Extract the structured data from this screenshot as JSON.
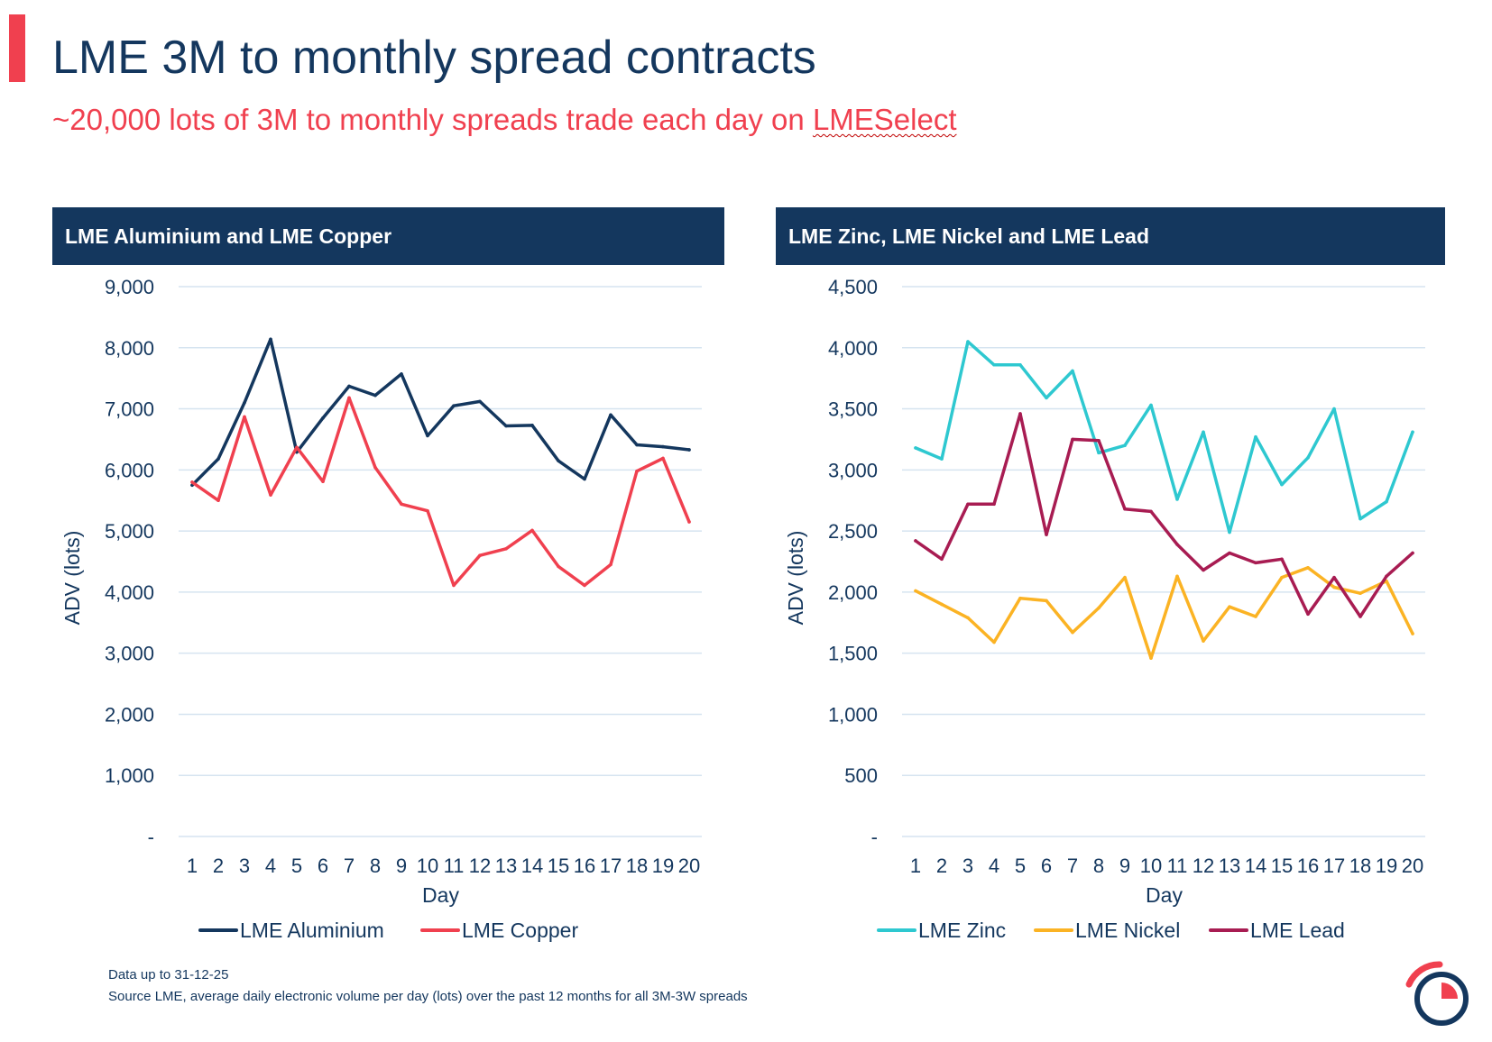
{
  "header": {
    "title": "LME 3M to monthly spread contracts",
    "subtitle_pre": "~20,000 lots of 3M to monthly spreads trade each day on ",
    "subtitle_link": "LMESelect"
  },
  "footnotes": {
    "date": "Data up to 31-12-25",
    "source": "Source LME, average daily electronic volume per day (lots) over the past 12 months for all 3M-3W spreads"
  },
  "colors": {
    "navy": "#14375e",
    "red": "#f0404f",
    "teal": "#2ec8d0",
    "amber": "#fbb324",
    "crimson": "#a81c52",
    "grid": "#d6e4f0"
  },
  "chart_data": [
    {
      "type": "line",
      "panel_title": "LME Aluminium and LME Copper",
      "xlabel": "Day",
      "ylabel": "ADV (lots)",
      "ylim": [
        0,
        9000
      ],
      "yticks": [
        0,
        1000,
        2000,
        3000,
        4000,
        5000,
        6000,
        7000,
        8000,
        9000
      ],
      "ytick_labels": [
        "-",
        "1,000",
        "2,000",
        "3,000",
        "4,000",
        "5,000",
        "6,000",
        "7,000",
        "8,000",
        "9,000"
      ],
      "x": [
        1,
        2,
        3,
        4,
        5,
        6,
        7,
        8,
        9,
        10,
        11,
        12,
        13,
        14,
        15,
        16,
        17,
        18,
        19,
        20
      ],
      "legend_position": "bottom",
      "grid": true,
      "series": [
        {
          "name": "LME Aluminium",
          "color": "#14375e",
          "values": [
            5750,
            6180,
            7100,
            8140,
            6290,
            6850,
            7370,
            7220,
            7570,
            6560,
            7050,
            7120,
            6720,
            6730,
            6150,
            5850,
            6900,
            6410,
            6380,
            6330
          ]
        },
        {
          "name": "LME Copper",
          "color": "#f0404f",
          "values": [
            5800,
            5500,
            6870,
            5590,
            6370,
            5810,
            7180,
            6040,
            5440,
            5330,
            4110,
            4600,
            4710,
            5010,
            4420,
            4110,
            4450,
            5980,
            6190,
            5150
          ]
        }
      ]
    },
    {
      "type": "line",
      "panel_title": "LME Zinc, LME Nickel and LME Lead",
      "xlabel": "Day",
      "ylabel": "ADV (lots)",
      "ylim": [
        0,
        4500
      ],
      "yticks": [
        0,
        500,
        1000,
        1500,
        2000,
        2500,
        3000,
        3500,
        4000,
        4500
      ],
      "ytick_labels": [
        "-",
        "500",
        "1,000",
        "1,500",
        "2,000",
        "2,500",
        "3,000",
        "3,500",
        "4,000",
        "4,500"
      ],
      "x": [
        1,
        2,
        3,
        4,
        5,
        6,
        7,
        8,
        9,
        10,
        11,
        12,
        13,
        14,
        15,
        16,
        17,
        18,
        19,
        20
      ],
      "legend_position": "bottom",
      "grid": true,
      "series": [
        {
          "name": "LME Zinc",
          "color": "#2ec8d0",
          "values": [
            3180,
            3090,
            4050,
            3860,
            3860,
            3590,
            3810,
            3140,
            3200,
            3530,
            2760,
            3310,
            2490,
            3270,
            2880,
            3100,
            3500,
            2600,
            2740,
            3310
          ]
        },
        {
          "name": "LME Nickel",
          "color": "#fbb324",
          "values": [
            2010,
            1900,
            1790,
            1590,
            1950,
            1930,
            1670,
            1870,
            2120,
            1460,
            2130,
            1600,
            1880,
            1800,
            2120,
            2200,
            2040,
            1990,
            2090,
            1660
          ]
        },
        {
          "name": "LME Lead",
          "color": "#a81c52",
          "values": [
            2420,
            2270,
            2720,
            2720,
            3460,
            2470,
            3250,
            3240,
            2680,
            2660,
            2390,
            2180,
            2320,
            2240,
            2270,
            1820,
            2120,
            1800,
            2130,
            2320
          ]
        }
      ]
    }
  ]
}
